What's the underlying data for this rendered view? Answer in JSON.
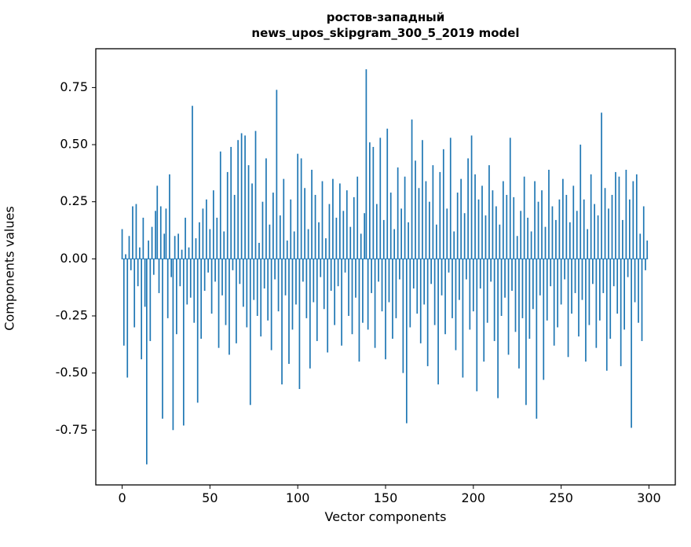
{
  "title": {
    "line1": "ростов-западный",
    "line2": "news_upos_skipgram_300_5_2019 model"
  },
  "axes": {
    "x_label": "Vector components",
    "y_label": "Components values"
  },
  "chart_data": {
    "type": "bar",
    "title": "ростов-западный\nnews_upos_skipgram_300_5_2019 model",
    "xlabel": "Vector components",
    "ylabel": "Components values",
    "color": "#1f77b4",
    "xlim": [
      -15,
      315
    ],
    "ylim": [
      -0.99,
      0.92
    ],
    "xticks": [
      0,
      50,
      100,
      150,
      200,
      250,
      300
    ],
    "yticks": [
      "0.75",
      "0.50",
      "0.25",
      "0.00",
      "-0.25",
      "-0.50",
      "-0.75"
    ],
    "grid": false,
    "legend": "none",
    "values": [
      0.13,
      -0.38,
      0.02,
      -0.52,
      0.1,
      -0.05,
      0.23,
      -0.3,
      0.24,
      -0.12,
      0.05,
      -0.44,
      0.18,
      -0.21,
      -0.9,
      0.08,
      -0.36,
      0.14,
      -0.07,
      0.21,
      0.32,
      -0.15,
      0.23,
      -0.7,
      0.11,
      0.22,
      -0.26,
      0.37,
      -0.08,
      -0.75,
      0.1,
      -0.33,
      0.11,
      -0.12,
      0.04,
      -0.73,
      0.18,
      -0.2,
      0.05,
      -0.17,
      0.67,
      -0.28,
      0.09,
      -0.63,
      0.16,
      -0.35,
      0.22,
      -0.14,
      0.26,
      -0.06,
      0.13,
      -0.24,
      0.3,
      -0.1,
      0.18,
      -0.39,
      0.47,
      -0.16,
      0.12,
      -0.29,
      0.38,
      -0.42,
      0.49,
      -0.05,
      0.28,
      -0.37,
      0.52,
      -0.11,
      0.55,
      -0.21,
      0.54,
      -0.3,
      0.41,
      -0.64,
      0.33,
      -0.18,
      0.56,
      -0.25,
      0.07,
      -0.34,
      0.25,
      -0.13,
      0.44,
      -0.27,
      0.15,
      -0.4,
      0.29,
      -0.09,
      0.74,
      -0.23,
      0.19,
      -0.55,
      0.35,
      -0.16,
      0.08,
      -0.46,
      0.26,
      -0.31,
      0.12,
      -0.2,
      0.46,
      -0.57,
      0.44,
      -0.1,
      0.31,
      -0.26,
      0.13,
      -0.48,
      0.39,
      -0.19,
      0.28,
      -0.36,
      0.16,
      -0.08,
      0.34,
      -0.22,
      0.09,
      -0.41,
      0.24,
      -0.14,
      0.35,
      -0.29,
      0.18,
      -0.12,
      0.33,
      -0.38,
      0.21,
      -0.06,
      0.3,
      -0.25,
      0.14,
      -0.33,
      0.27,
      -0.17,
      0.36,
      -0.45,
      0.11,
      -0.28,
      0.2,
      0.83,
      -0.31,
      0.51,
      -0.15,
      0.49,
      -0.39,
      0.24,
      -0.1,
      0.53,
      -0.23,
      0.17,
      -0.44,
      0.57,
      -0.19,
      0.29,
      -0.35,
      0.13,
      -0.26,
      0.4,
      -0.09,
      0.22,
      -0.5,
      0.36,
      -0.72,
      0.16,
      -0.3,
      0.61,
      -0.13,
      0.43,
      -0.24,
      0.31,
      -0.37,
      0.52,
      -0.2,
      0.34,
      -0.47,
      0.25,
      -0.11,
      0.41,
      -0.29,
      0.15,
      -0.55,
      0.38,
      -0.16,
      0.48,
      -0.33,
      0.22,
      -0.06,
      0.53,
      -0.26,
      0.12,
      -0.4,
      0.29,
      -0.18,
      0.35,
      -0.52,
      0.2,
      -0.09,
      0.44,
      -0.31,
      0.54,
      -0.23,
      0.37,
      -0.58,
      0.26,
      -0.13,
      0.32,
      -0.45,
      0.19,
      -0.28,
      0.41,
      -0.1,
      0.3,
      -0.36,
      0.23,
      -0.61,
      0.15,
      -0.25,
      0.34,
      -0.17,
      0.28,
      -0.42,
      0.53,
      -0.14,
      0.27,
      -0.32,
      0.1,
      -0.48,
      0.21,
      -0.26,
      0.36,
      -0.64,
      0.18,
      -0.35,
      0.12,
      -0.22,
      0.34,
      -0.7,
      0.25,
      -0.16,
      0.3,
      -0.53,
      0.14,
      -0.27,
      0.39,
      -0.12,
      0.23,
      -0.38,
      0.17,
      -0.3,
      0.26,
      -0.2,
      0.35,
      -0.09,
      0.28,
      -0.43,
      0.16,
      -0.24,
      0.32,
      -0.15,
      0.21,
      -0.34,
      0.5,
      -0.18,
      0.26,
      -0.45,
      0.13,
      -0.29,
      0.37,
      -0.11,
      0.24,
      -0.39,
      0.19,
      -0.27,
      0.64,
      -0.15,
      0.31,
      -0.49,
      0.22,
      -0.35,
      0.28,
      -0.12,
      0.38,
      -0.24,
      0.36,
      -0.47,
      0.17,
      -0.31,
      0.39,
      -0.08,
      0.26,
      -0.74,
      0.34,
      -0.19,
      0.37,
      -0.28,
      0.11,
      -0.36,
      0.23,
      -0.05,
      0.08
    ]
  }
}
